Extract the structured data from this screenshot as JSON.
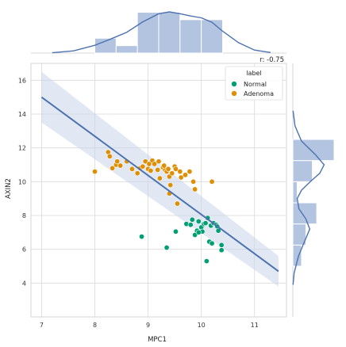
{
  "chart_data": {
    "type": "scatter",
    "xlabel": "MPC1",
    "ylabel": "AXIN2",
    "xlim": [
      6.8,
      11.6
    ],
    "ylim": [
      2.0,
      17.0
    ],
    "x_ticks": [
      7,
      8,
      9,
      10,
      11
    ],
    "y_ticks": [
      4,
      6,
      8,
      10,
      12,
      14,
      16
    ],
    "grid": true,
    "legend": {
      "title": "label",
      "position": "top-right",
      "entries": [
        {
          "name": "Normal",
          "color": "#009e73"
        },
        {
          "name": "Adenoma",
          "color": "#de8f05"
        }
      ]
    },
    "annotation": "r: -0.75",
    "regression": {
      "x": [
        7.0,
        11.45
      ],
      "y": [
        15.0,
        4.7
      ],
      "ci_low": [
        13.5,
        3.8
      ],
      "ci_high": [
        16.5,
        5.6
      ],
      "color": "#4c72b0",
      "band_color": "#c9d6ea"
    },
    "series": [
      {
        "name": "Normal",
        "color": "#009e73",
        "points": [
          [
            8.88,
            6.75
          ],
          [
            9.35,
            6.1
          ],
          [
            9.52,
            7.05
          ],
          [
            9.72,
            7.5
          ],
          [
            9.83,
            7.75
          ],
          [
            9.88,
            6.85
          ],
          [
            9.92,
            7.1
          ],
          [
            9.95,
            7.65
          ],
          [
            10.0,
            7.3
          ],
          [
            10.02,
            7.05
          ],
          [
            10.05,
            7.5
          ],
          [
            10.08,
            7.55
          ],
          [
            10.1,
            5.3
          ],
          [
            10.12,
            7.85
          ],
          [
            10.15,
            6.45
          ],
          [
            10.18,
            7.4
          ],
          [
            10.2,
            6.35
          ],
          [
            10.23,
            7.55
          ],
          [
            10.28,
            7.45
          ],
          [
            10.3,
            7.35
          ],
          [
            10.32,
            7.1
          ],
          [
            10.38,
            6.25
          ],
          [
            10.38,
            5.95
          ],
          [
            9.8,
            7.45
          ],
          [
            9.95,
            7.0
          ]
        ]
      },
      {
        "name": "Adenoma",
        "color": "#de8f05",
        "points": [
          [
            8.0,
            10.6
          ],
          [
            8.25,
            11.75
          ],
          [
            8.28,
            11.5
          ],
          [
            8.33,
            10.8
          ],
          [
            8.4,
            11.0
          ],
          [
            8.42,
            11.2
          ],
          [
            8.48,
            10.95
          ],
          [
            8.6,
            11.2
          ],
          [
            8.7,
            10.75
          ],
          [
            8.8,
            10.5
          ],
          [
            8.85,
            10.8
          ],
          [
            8.9,
            10.9
          ],
          [
            8.95,
            11.2
          ],
          [
            9.0,
            10.75
          ],
          [
            9.02,
            11.05
          ],
          [
            9.05,
            10.65
          ],
          [
            9.08,
            11.25
          ],
          [
            9.12,
            11.05
          ],
          [
            9.18,
            10.7
          ],
          [
            9.2,
            11.2
          ],
          [
            9.22,
            10.2
          ],
          [
            9.28,
            10.85
          ],
          [
            9.32,
            10.7
          ],
          [
            9.35,
            10.6
          ],
          [
            9.38,
            10.75
          ],
          [
            9.4,
            10.3
          ],
          [
            9.42,
            9.8
          ],
          [
            9.4,
            9.3
          ],
          [
            9.45,
            10.5
          ],
          [
            9.5,
            10.9
          ],
          [
            9.52,
            10.75
          ],
          [
            9.55,
            8.7
          ],
          [
            9.6,
            10.6
          ],
          [
            9.62,
            10.25
          ],
          [
            9.7,
            10.4
          ],
          [
            9.78,
            10.6
          ],
          [
            9.85,
            10.0
          ],
          [
            9.88,
            9.55
          ],
          [
            10.2,
            10.0
          ],
          [
            9.3,
            10.95
          ]
        ]
      }
    ],
    "marginal_x": {
      "bins": [
        {
          "start": 8.0,
          "end": 8.4,
          "count": 4
        },
        {
          "start": 8.4,
          "end": 8.8,
          "count": 2
        },
        {
          "start": 8.8,
          "end": 9.2,
          "count": 11
        },
        {
          "start": 9.2,
          "end": 9.6,
          "count": 11
        },
        {
          "start": 9.6,
          "end": 10.0,
          "count": 9
        },
        {
          "start": 10.0,
          "end": 10.4,
          "count": 9
        }
      ],
      "kde_x": [
        7.2,
        7.6,
        8.0,
        8.3,
        8.6,
        8.9,
        9.2,
        9.4,
        9.6,
        9.8,
        10.0,
        10.2,
        10.4,
        10.7,
        11.0,
        11.3
      ],
      "kde_y": [
        0.1,
        0.6,
        2.1,
        3.8,
        5.6,
        8.4,
        10.6,
        11.1,
        10.6,
        10.0,
        9.5,
        8.3,
        5.9,
        2.8,
        0.8,
        0.15
      ]
    },
    "marginal_y": {
      "bins": [
        {
          "start": 5.0,
          "end": 6.25,
          "count": 4
        },
        {
          "start": 6.25,
          "end": 7.5,
          "count": 6
        },
        {
          "start": 7.5,
          "end": 8.75,
          "count": 11
        },
        {
          "start": 8.75,
          "end": 10.0,
          "count": 2
        },
        {
          "start": 10.0,
          "end": 11.25,
          "count": 9
        },
        {
          "start": 11.25,
          "end": 12.5,
          "count": 19
        }
      ],
      "kde_y": [
        3.9,
        4.6,
        5.6,
        6.4,
        7.2,
        7.8,
        8.4,
        9.0,
        9.5,
        10.0,
        10.5,
        11.0,
        11.6,
        12.4,
        13.3,
        14.2
      ],
      "kde_x": [
        0.1,
        0.6,
        2.6,
        5.2,
        7.8,
        6.0,
        2.8,
        2.0,
        4.0,
        8.0,
        12.4,
        14.4,
        10.4,
        4.0,
        1.0,
        0.1
      ]
    }
  }
}
